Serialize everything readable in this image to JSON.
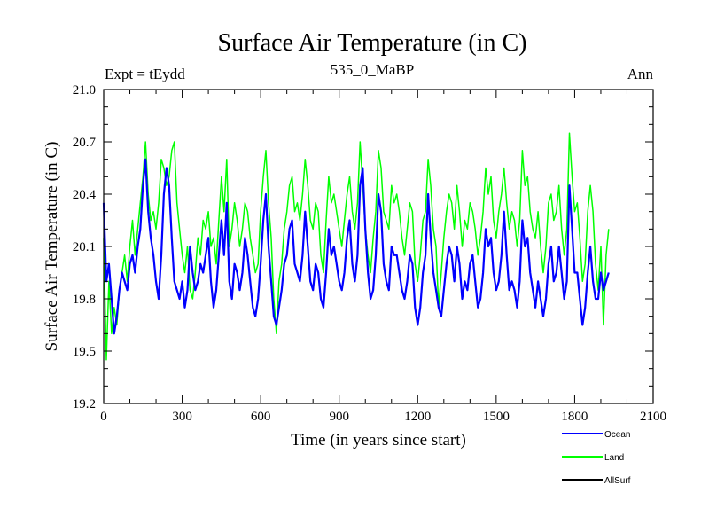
{
  "chart_data": {
    "type": "line",
    "title": "Surface Air Temperature (in C)",
    "subtitle_left": "Expt = tEydd",
    "subtitle_center": "535_0_MaBP",
    "subtitle_right": "Ann",
    "xlabel": "Time (in years since start)",
    "ylabel": "Surface Air Temperature (in C)",
    "xlim": [
      0,
      2100
    ],
    "ylim": [
      19.2,
      21.0
    ],
    "x_ticks": [
      0,
      300,
      600,
      900,
      1200,
      1500,
      1800,
      2100
    ],
    "y_ticks": [
      19.2,
      19.5,
      19.8,
      20.1,
      20.4,
      20.7,
      21.0
    ],
    "x_tick_labels": [
      "0",
      "300",
      "600",
      "900",
      "1200",
      "1500",
      "1800",
      "2100"
    ],
    "y_tick_labels": [
      "19.2",
      "19.5",
      "19.8",
      "20.1",
      "20.4",
      "20.7",
      "21.0"
    ],
    "legend": [
      {
        "name": "Ocean",
        "color": "#0000ff"
      },
      {
        "name": "Land",
        "color": "#00ff00"
      },
      {
        "name": "AllSurf",
        "color": "#000000"
      }
    ],
    "series": [
      {
        "name": "Land",
        "color": "#00ff00",
        "x_start": 0,
        "x_step": 10,
        "values": [
          20.15,
          19.45,
          19.9,
          19.6,
          19.75,
          19.65,
          19.85,
          19.95,
          20.05,
          19.9,
          20.1,
          20.25,
          20.05,
          20.2,
          20.35,
          20.5,
          20.7,
          20.4,
          20.25,
          20.3,
          20.2,
          20.35,
          20.6,
          20.55,
          20.45,
          20.5,
          20.65,
          20.7,
          20.35,
          20.2,
          20.05,
          19.95,
          20.1,
          19.85,
          19.8,
          19.95,
          20.15,
          20.05,
          20.25,
          20.2,
          20.3,
          20.1,
          20.15,
          20.0,
          20.25,
          20.5,
          20.3,
          20.6,
          20.1,
          20.2,
          20.35,
          20.25,
          20.1,
          20.2,
          20.35,
          20.3,
          20.15,
          20.05,
          19.95,
          20.0,
          20.3,
          20.5,
          20.65,
          20.35,
          20.15,
          19.8,
          19.6,
          19.9,
          20.0,
          20.2,
          20.3,
          20.45,
          20.5,
          20.3,
          20.35,
          20.25,
          20.4,
          20.6,
          20.45,
          20.25,
          20.2,
          20.35,
          20.3,
          20.05,
          19.95,
          20.25,
          20.5,
          20.35,
          20.4,
          20.3,
          20.2,
          20.1,
          20.25,
          20.4,
          20.5,
          20.3,
          20.2,
          20.35,
          20.7,
          20.45,
          20.2,
          20.05,
          19.95,
          20.15,
          20.3,
          20.65,
          20.55,
          20.3,
          20.25,
          20.2,
          20.45,
          20.35,
          20.4,
          20.3,
          20.15,
          20.05,
          20.2,
          20.35,
          20.3,
          20.0,
          19.9,
          20.05,
          20.25,
          20.3,
          20.6,
          20.45,
          20.2,
          20.1,
          19.75,
          19.95,
          20.15,
          20.3,
          20.4,
          20.35,
          20.2,
          20.45,
          20.3,
          20.1,
          20.25,
          20.2,
          20.35,
          20.3,
          20.2,
          20.05,
          20.15,
          20.3,
          20.55,
          20.4,
          20.5,
          20.25,
          20.15,
          20.3,
          20.4,
          20.55,
          20.35,
          20.2,
          20.3,
          20.25,
          20.1,
          20.25,
          20.65,
          20.45,
          20.5,
          20.3,
          20.2,
          20.15,
          20.3,
          20.1,
          19.95,
          20.1,
          20.35,
          20.4,
          20.25,
          20.3,
          20.45,
          20.2,
          20.05,
          20.2,
          20.75,
          20.5,
          20.3,
          20.35,
          20.15,
          19.9,
          20.0,
          20.3,
          20.45,
          20.3,
          20.0,
          19.85,
          20.1,
          19.65,
          20.05,
          20.2
        ]
      },
      {
        "name": "Ocean",
        "color": "#0000ff",
        "x_start": 0,
        "x_step": 10,
        "values": [
          20.35,
          19.9,
          20.0,
          19.8,
          19.6,
          19.7,
          19.85,
          19.95,
          19.9,
          19.85,
          20.0,
          20.05,
          19.95,
          20.1,
          20.2,
          20.45,
          20.6,
          20.3,
          20.15,
          20.05,
          19.9,
          19.8,
          20.05,
          20.4,
          20.55,
          20.45,
          20.15,
          19.9,
          19.85,
          19.8,
          19.9,
          19.75,
          19.85,
          20.1,
          19.95,
          19.85,
          19.9,
          20.0,
          19.95,
          20.05,
          20.15,
          19.9,
          19.75,
          19.85,
          20.05,
          20.25,
          20.05,
          20.35,
          19.9,
          19.8,
          20.0,
          19.95,
          19.85,
          19.95,
          20.15,
          20.05,
          19.9,
          19.75,
          19.7,
          19.8,
          20.0,
          20.25,
          20.4,
          20.1,
          19.9,
          19.7,
          19.65,
          19.75,
          19.85,
          20.0,
          20.05,
          20.2,
          20.25,
          20.0,
          19.95,
          19.9,
          20.05,
          20.3,
          20.1,
          19.9,
          19.85,
          20.0,
          19.95,
          19.8,
          19.75,
          19.95,
          20.2,
          20.05,
          20.1,
          20.0,
          19.9,
          19.85,
          19.95,
          20.15,
          20.25,
          20.0,
          19.9,
          20.05,
          20.45,
          20.55,
          20.2,
          19.95,
          19.8,
          19.85,
          20.05,
          20.4,
          20.3,
          20.0,
          19.9,
          19.85,
          20.1,
          20.05,
          20.05,
          19.95,
          19.85,
          19.8,
          19.9,
          20.05,
          20.0,
          19.75,
          19.65,
          19.75,
          19.95,
          20.05,
          20.4,
          20.15,
          19.95,
          19.85,
          19.75,
          19.7,
          19.85,
          20.0,
          20.1,
          20.05,
          19.9,
          20.1,
          20.0,
          19.8,
          19.9,
          19.85,
          20.0,
          20.05,
          19.9,
          19.75,
          19.8,
          19.95,
          20.2,
          20.1,
          20.15,
          19.95,
          19.85,
          19.9,
          20.05,
          20.3,
          20.05,
          19.85,
          19.9,
          19.85,
          19.75,
          19.9,
          20.25,
          20.1,
          20.15,
          19.95,
          19.85,
          19.75,
          19.9,
          19.8,
          19.7,
          19.8,
          20.0,
          20.1,
          19.9,
          19.95,
          20.1,
          19.95,
          19.8,
          19.9,
          20.45,
          20.2,
          19.95,
          19.95,
          19.8,
          19.65,
          19.75,
          19.95,
          20.1,
          19.9,
          19.8,
          19.8,
          19.95,
          19.85,
          19.9,
          19.95
        ]
      },
      {
        "name": "AllSurf",
        "color": "#000000",
        "x_start": 0,
        "x_step": 10,
        "values": []
      }
    ]
  }
}
